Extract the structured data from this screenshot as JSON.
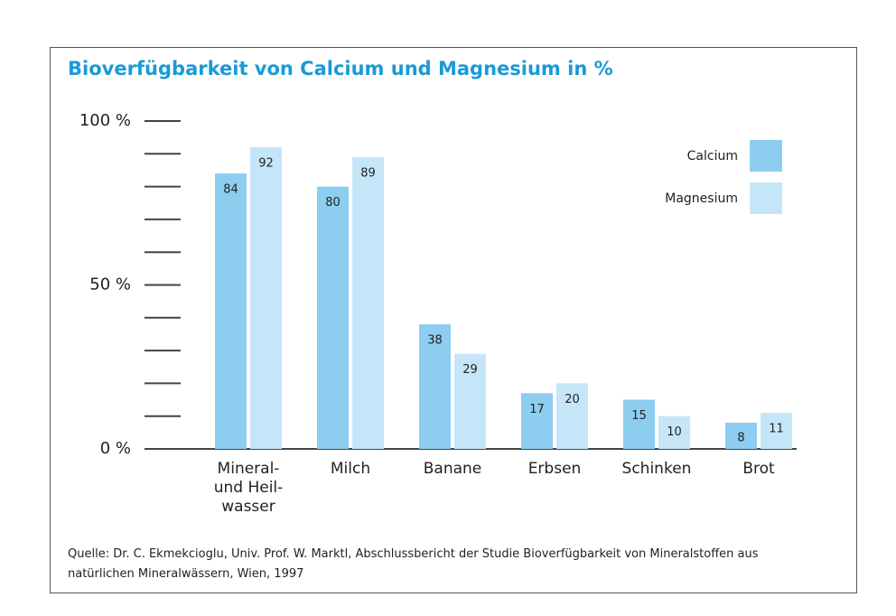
{
  "chart_data": {
    "type": "bar",
    "title": "Bioverfügbarkeit von Calcium und Magnesium in %",
    "categories": [
      "Mineral-\nund Heil-\nwasser",
      "Milch",
      "Banane",
      "Erbsen",
      "Schinken",
      "Brot"
    ],
    "series": [
      {
        "name": "Calcium",
        "color": "#8ccdf0",
        "values": [
          84,
          80,
          38,
          17,
          15,
          8
        ]
      },
      {
        "name": "Magnesium",
        "color": "#c5e6f8",
        "values": [
          92,
          89,
          29,
          20,
          10,
          11
        ]
      }
    ],
    "ylim": [
      0,
      100
    ],
    "yticks": [
      {
        "value": 0,
        "label": "0 %"
      },
      {
        "value": 50,
        "label": "50 %"
      },
      {
        "value": 100,
        "label": "100 %"
      }
    ],
    "yticks_minor": [
      10,
      20,
      30,
      40,
      60,
      70,
      80,
      90
    ],
    "legend": "upper right",
    "source": "Quelle: Dr. C. Ekmekcioglu, Univ. Prof. W. Marktl, Abschlussbericht der Studie Bioverfügbarkeit von Mineralstoffen aus\nnatürlichen Mineralwässern, Wien, 1997"
  }
}
